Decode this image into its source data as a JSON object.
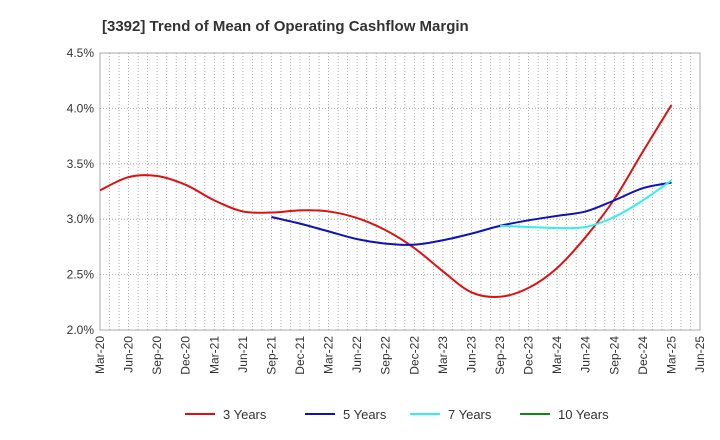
{
  "chart_data": {
    "type": "line",
    "title": "[3392]  Trend of Mean of Operating Cashflow Margin",
    "xlabel": "",
    "ylabel": "",
    "x_tick_labels": [
      "Mar-20",
      "Jun-20",
      "Sep-20",
      "Dec-20",
      "Mar-21",
      "Jun-21",
      "Sep-21",
      "Dec-21",
      "Mar-22",
      "Jun-22",
      "Sep-22",
      "Dec-22",
      "Mar-23",
      "Jun-23",
      "Sep-23",
      "Dec-23",
      "Mar-24",
      "Jun-24",
      "Sep-24",
      "Dec-24",
      "Mar-25",
      "Jun-25"
    ],
    "y_tick_labels": [
      "2.0%",
      "2.5%",
      "3.0%",
      "3.5%",
      "4.0%",
      "4.5%"
    ],
    "ylim": [
      2.0,
      4.5
    ],
    "grid": true,
    "legend_position": "bottom",
    "series": [
      {
        "name": "3 Years",
        "color": "#dd1111",
        "points": [
          [
            "Mar-20",
            3.26
          ],
          [
            "Jun-20",
            3.38
          ],
          [
            "Sep-20",
            3.39
          ],
          [
            "Dec-20",
            3.31
          ],
          [
            "Mar-21",
            3.17
          ],
          [
            "Jun-21",
            3.07
          ],
          [
            "Sep-21",
            3.06
          ],
          [
            "Dec-21",
            3.08
          ],
          [
            "Mar-22",
            3.07
          ],
          [
            "Jun-22",
            3.01
          ],
          [
            "Sep-22",
            2.9
          ],
          [
            "Dec-22",
            2.74
          ],
          [
            "Mar-23",
            2.53
          ],
          [
            "Jun-23",
            2.34
          ],
          [
            "Sep-23",
            2.3
          ],
          [
            "Dec-23",
            2.38
          ],
          [
            "Mar-24",
            2.56
          ],
          [
            "Jun-24",
            2.84
          ],
          [
            "Sep-24",
            3.18
          ],
          [
            "Dec-24",
            3.61
          ],
          [
            "Mar-25",
            4.03
          ]
        ]
      },
      {
        "name": "5 Years",
        "color": "#1111bb",
        "points": [
          [
            "Sep-21",
            3.02
          ],
          [
            "Dec-21",
            2.96
          ],
          [
            "Mar-22",
            2.89
          ],
          [
            "Jun-22",
            2.82
          ],
          [
            "Sep-22",
            2.78
          ],
          [
            "Dec-22",
            2.77
          ],
          [
            "Mar-23",
            2.81
          ],
          [
            "Jun-23",
            2.87
          ],
          [
            "Sep-23",
            2.94
          ],
          [
            "Dec-23",
            2.99
          ],
          [
            "Mar-24",
            3.03
          ],
          [
            "Jun-24",
            3.07
          ],
          [
            "Sep-24",
            3.17
          ],
          [
            "Dec-24",
            3.28
          ],
          [
            "Mar-25",
            3.33
          ]
        ]
      },
      {
        "name": "7 Years",
        "color": "#33eeee",
        "points": [
          [
            "Sep-23",
            2.94
          ],
          [
            "Dec-23",
            2.93
          ],
          [
            "Mar-24",
            2.92
          ],
          [
            "Jun-24",
            2.93
          ],
          [
            "Sep-24",
            3.02
          ],
          [
            "Dec-24",
            3.17
          ],
          [
            "Mar-25",
            3.35
          ]
        ]
      },
      {
        "name": "10 Years",
        "color": "#118811",
        "points": []
      }
    ]
  }
}
